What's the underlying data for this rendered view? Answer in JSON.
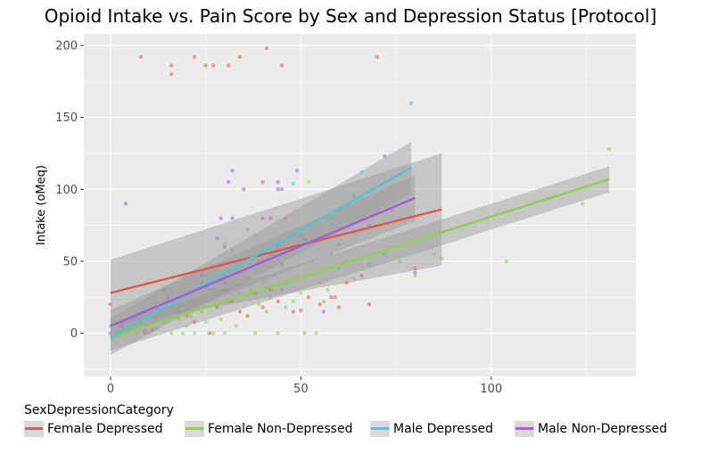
{
  "chart_data": {
    "type": "scatter",
    "title": "Opioid Intake vs. Pain Score by Sex and Depression Status [Protocol]",
    "xlabel": "",
    "ylabel": "Intake (oMeq)",
    "xlim": [
      -7,
      138
    ],
    "ylim": [
      -30,
      208
    ],
    "x_ticks": [
      0,
      50,
      100
    ],
    "y_ticks": [
      0,
      50,
      100,
      150,
      200
    ],
    "grid": true,
    "legend_title": "SexDepressionCategory",
    "legend_position": "bottom",
    "series": [
      {
        "name": "Female Depressed",
        "color": "#e0584c",
        "points": [
          [
            8,
            192
          ],
          [
            16,
            186
          ],
          [
            16,
            180
          ],
          [
            22,
            192
          ],
          [
            25,
            186
          ],
          [
            27,
            186
          ],
          [
            31,
            186
          ],
          [
            34,
            192
          ],
          [
            40,
            105
          ],
          [
            41,
            198
          ],
          [
            45,
            186
          ],
          [
            46,
            80
          ],
          [
            70,
            192
          ],
          [
            0,
            20
          ],
          [
            3,
            5
          ],
          [
            5,
            2
          ],
          [
            7,
            10
          ],
          [
            9,
            0
          ],
          [
            11,
            2
          ],
          [
            12,
            15
          ],
          [
            14,
            30
          ],
          [
            15,
            25
          ],
          [
            18,
            18
          ],
          [
            20,
            12
          ],
          [
            22,
            8
          ],
          [
            24,
            40
          ],
          [
            26,
            0
          ],
          [
            28,
            18
          ],
          [
            30,
            30
          ],
          [
            32,
            22
          ],
          [
            34,
            15
          ],
          [
            36,
            12
          ],
          [
            38,
            28
          ],
          [
            40,
            18
          ],
          [
            42,
            30
          ],
          [
            44,
            22
          ],
          [
            46,
            35
          ],
          [
            48,
            15
          ],
          [
            50,
            16
          ],
          [
            52,
            25
          ],
          [
            55,
            20
          ],
          [
            58,
            25
          ],
          [
            59,
            25
          ],
          [
            60,
            18
          ],
          [
            62,
            35
          ],
          [
            66,
            40
          ],
          [
            68,
            20
          ],
          [
            80,
            45
          ]
        ],
        "fit_line": {
          "x": [
            0,
            87
          ],
          "y": [
            28,
            86
          ]
        },
        "ci_band": {
          "x": [
            0,
            87
          ],
          "lower": [
            5,
            47
          ],
          "upper": [
            51,
            125
          ]
        }
      },
      {
        "name": "Female Non-Depressed",
        "color": "#8fd14f",
        "points": [
          [
            131,
            128
          ],
          [
            104,
            50
          ],
          [
            87,
            52
          ],
          [
            124,
            90
          ],
          [
            52,
            105
          ],
          [
            2,
            0
          ],
          [
            5,
            2
          ],
          [
            7,
            0
          ],
          [
            9,
            5
          ],
          [
            10,
            0
          ],
          [
            12,
            3
          ],
          [
            14,
            8
          ],
          [
            16,
            0
          ],
          [
            18,
            10
          ],
          [
            19,
            0
          ],
          [
            20,
            5
          ],
          [
            21,
            12
          ],
          [
            22,
            0
          ],
          [
            24,
            15
          ],
          [
            25,
            8
          ],
          [
            27,
            0
          ],
          [
            28,
            18
          ],
          [
            29,
            10
          ],
          [
            30,
            0
          ],
          [
            31,
            22
          ],
          [
            33,
            5
          ],
          [
            34,
            28
          ],
          [
            36,
            12
          ],
          [
            37,
            30
          ],
          [
            38,
            0
          ],
          [
            39,
            20
          ],
          [
            40,
            35
          ],
          [
            41,
            15
          ],
          [
            42,
            25
          ],
          [
            43,
            40
          ],
          [
            44,
            0
          ],
          [
            45,
            30
          ],
          [
            46,
            18
          ],
          [
            47,
            45
          ],
          [
            48,
            22
          ],
          [
            49,
            38
          ],
          [
            50,
            28
          ],
          [
            51,
            0
          ],
          [
            53,
            50
          ],
          [
            54,
            0
          ],
          [
            55,
            35
          ],
          [
            56,
            22
          ],
          [
            57,
            30
          ],
          [
            58,
            55
          ],
          [
            60,
            45
          ],
          [
            62,
            50
          ],
          [
            64,
            38
          ],
          [
            66,
            52
          ],
          [
            68,
            48
          ],
          [
            72,
            55
          ],
          [
            76,
            50
          ],
          [
            80,
            40
          ],
          [
            85,
            55
          ],
          [
            30,
            62
          ],
          [
            32,
            58
          ]
        ],
        "fit_line": {
          "x": [
            0,
            131
          ],
          "y": [
            -3,
            107
          ]
        },
        "ci_band": {
          "x": [
            0,
            131
          ],
          "lower": [
            -12,
            98
          ],
          "upper": [
            6,
            116
          ]
        }
      },
      {
        "name": "Male Depressed",
        "color": "#4fc6cf",
        "points": [
          [
            79,
            160
          ],
          [
            48,
            104
          ],
          [
            36,
            72
          ],
          [
            66,
            112
          ],
          [
            0,
            5
          ],
          [
            2,
            0
          ],
          [
            8,
            8
          ],
          [
            12,
            10
          ],
          [
            18,
            15
          ],
          [
            22,
            20
          ],
          [
            26,
            30
          ],
          [
            30,
            35
          ],
          [
            34,
            42
          ],
          [
            40,
            50
          ],
          [
            44,
            60
          ],
          [
            50,
            68
          ],
          [
            58,
            80
          ],
          [
            64,
            95
          ],
          [
            70,
            102
          ],
          [
            74,
            108
          ]
        ],
        "fit_line": {
          "x": [
            0,
            79
          ],
          "y": [
            -3,
            115
          ]
        },
        "ci_band": {
          "x": [
            0,
            79
          ],
          "lower": [
            -15,
            97
          ],
          "upper": [
            10,
            133
          ]
        }
      },
      {
        "name": "Male Non-Depressed",
        "color": "#a05de0",
        "points": [
          [
            4,
            90
          ],
          [
            32,
            113
          ],
          [
            31,
            105
          ],
          [
            35,
            100
          ],
          [
            44,
            105
          ],
          [
            44,
            100
          ],
          [
            45,
            100
          ],
          [
            49,
            113
          ],
          [
            29,
            80
          ],
          [
            32,
            80
          ],
          [
            40,
            80
          ],
          [
            42,
            80
          ],
          [
            28,
            66
          ],
          [
            30,
            60
          ],
          [
            72,
            123
          ],
          [
            0,
            0
          ],
          [
            3,
            4
          ],
          [
            6,
            10
          ],
          [
            9,
            2
          ],
          [
            12,
            18
          ],
          [
            15,
            22
          ],
          [
            18,
            14
          ],
          [
            21,
            28
          ],
          [
            24,
            35
          ],
          [
            27,
            30
          ],
          [
            30,
            40
          ],
          [
            33,
            45
          ],
          [
            36,
            38
          ],
          [
            39,
            50
          ],
          [
            42,
            55
          ],
          [
            45,
            48
          ],
          [
            48,
            60
          ],
          [
            51,
            65
          ],
          [
            56,
            15
          ],
          [
            60,
            62
          ],
          [
            64,
            70
          ],
          [
            68,
            75
          ],
          [
            74,
            85
          ],
          [
            80,
            42
          ]
        ],
        "fit_line": {
          "x": [
            0,
            80
          ],
          "y": [
            5,
            94
          ]
        },
        "ci_band": {
          "x": [
            0,
            80
          ],
          "lower": [
            -5,
            78
          ],
          "upper": [
            16,
            110
          ]
        }
      }
    ]
  }
}
